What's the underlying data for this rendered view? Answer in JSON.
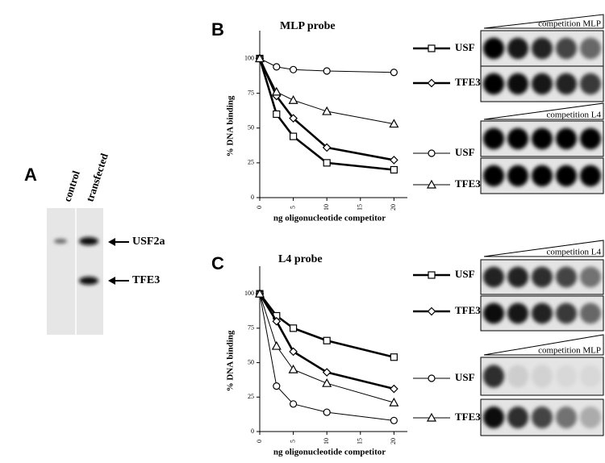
{
  "panels": [
    "A",
    "B",
    "C"
  ],
  "panel_a": {
    "lanes": [
      "control",
      "transfected"
    ],
    "bands": [
      "USF2a",
      "TFE3"
    ]
  },
  "gel_labels": [
    "competition MLP",
    "competition L4",
    "competition L4",
    "competition MLP"
  ],
  "chart_data": [
    {
      "type": "line",
      "title": "MLP probe",
      "y_label": "% DNA binding",
      "x_label": "ng oligonucleotide competitor",
      "x": [
        0,
        2.5,
        5,
        10,
        20
      ],
      "xlim": [
        0,
        22
      ],
      "xticks": [
        0,
        5,
        10,
        15,
        20
      ],
      "ylim": [
        0,
        120
      ],
      "yticks": [
        0,
        25,
        50,
        75,
        100
      ],
      "series": [
        {
          "name": "USF",
          "color": "#000000",
          "marker": "square",
          "line_width": 2.6,
          "values": [
            100,
            60,
            44,
            25,
            20
          ]
        },
        {
          "name": "TFE3",
          "color": "#000000",
          "marker": "diamond",
          "line_width": 2.6,
          "values": [
            100,
            73,
            57,
            36,
            27
          ]
        },
        {
          "name": "USF",
          "color": "#000000",
          "marker": "circle",
          "line_width": 1,
          "values": [
            100,
            94,
            92,
            91,
            90
          ]
        },
        {
          "name": "TFE3",
          "color": "#000000",
          "marker": "triangle",
          "line_width": 1,
          "values": [
            100,
            76,
            70,
            62,
            53
          ]
        }
      ]
    },
    {
      "type": "line",
      "title": "L4 probe",
      "y_label": "% DNA binding",
      "x_label": "ng oligonucleotide competitor",
      "x": [
        0,
        2.5,
        5,
        10,
        20
      ],
      "xlim": [
        0,
        22
      ],
      "xticks": [
        0,
        5,
        10,
        15,
        20
      ],
      "ylim": [
        0,
        120
      ],
      "yticks": [
        0,
        25,
        50,
        75,
        100
      ],
      "series": [
        {
          "name": "USF",
          "color": "#000000",
          "marker": "square",
          "line_width": 2.6,
          "values": [
            100,
            84,
            75,
            66,
            54
          ]
        },
        {
          "name": "TFE3",
          "color": "#000000",
          "marker": "diamond",
          "line_width": 2.6,
          "values": [
            100,
            80,
            58,
            43,
            31
          ]
        },
        {
          "name": "USF",
          "color": "#000000",
          "marker": "circle",
          "line_width": 1,
          "values": [
            100,
            33,
            20,
            14,
            8
          ]
        },
        {
          "name": "TFE3",
          "color": "#000000",
          "marker": "triangle",
          "line_width": 1,
          "values": [
            100,
            62,
            45,
            35,
            21
          ]
        }
      ]
    }
  ]
}
